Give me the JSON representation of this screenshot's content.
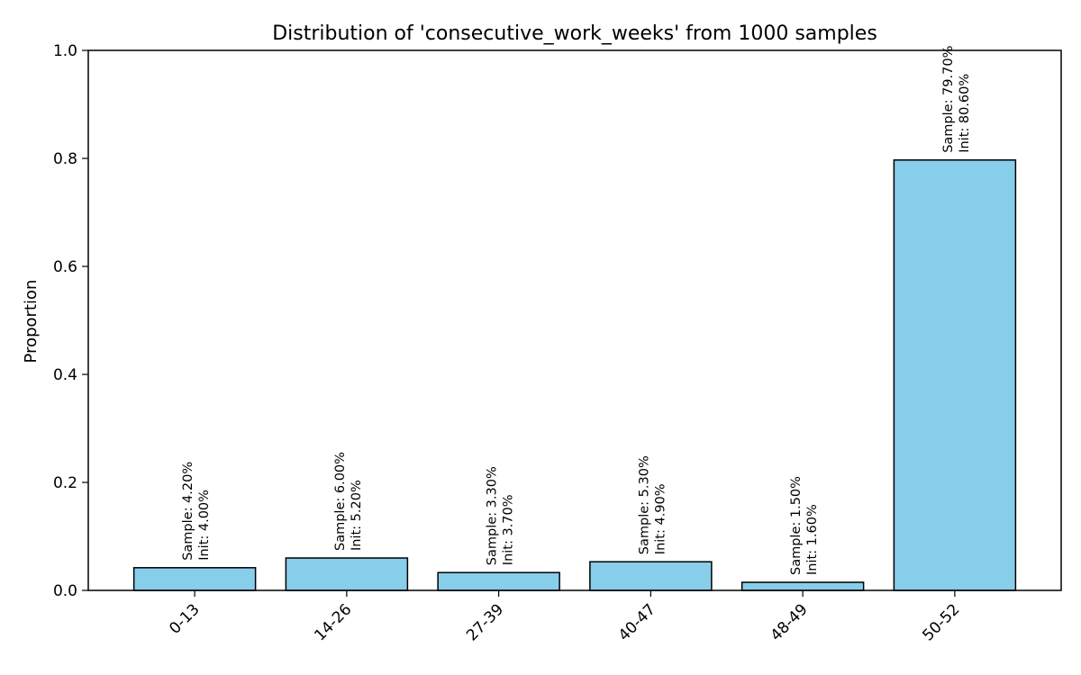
{
  "chart_data": {
    "type": "bar",
    "title": "Distribution of 'consecutive_work_weeks' from 1000 samples",
    "xlabel": "",
    "ylabel": "Proportion",
    "ylim": [
      0,
      1.0
    ],
    "yticks": [
      "0.0",
      "0.2",
      "0.4",
      "0.6",
      "0.8",
      "1.0"
    ],
    "categories": [
      "0-13",
      "14-26",
      "27-39",
      "40-47",
      "48-49",
      "50-52"
    ],
    "values": [
      0.042,
      0.06,
      0.033,
      0.053,
      0.015,
      0.797
    ],
    "annotations": [
      {
        "sample": "Sample: 4.20%",
        "init": "Init: 4.00%"
      },
      {
        "sample": "Sample: 6.00%",
        "init": "Init: 5.20%"
      },
      {
        "sample": "Sample: 3.30%",
        "init": "Init: 3.70%"
      },
      {
        "sample": "Sample: 5.30%",
        "init": "Init: 4.90%"
      },
      {
        "sample": "Sample: 1.50%",
        "init": "Init: 1.60%"
      },
      {
        "sample": "Sample: 79.70%",
        "init": "Init: 80.60%"
      }
    ],
    "bar_color": "#87CEEB",
    "edge_color": "#000000",
    "grid": false,
    "legend": "none"
  }
}
